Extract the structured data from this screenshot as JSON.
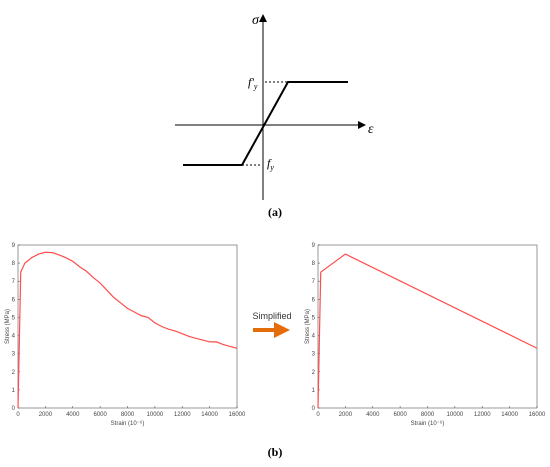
{
  "diagram": {
    "sigma": "σ",
    "epsilon": "ε",
    "upper_label": {
      "main": "f'",
      "sub": "y"
    },
    "lower_label": {
      "main": "f",
      "sub": "y"
    },
    "caption": "(a)"
  },
  "arrow_label": "Simplified",
  "caption_b": "(b)",
  "chart_data": [
    {
      "type": "line",
      "x_label": "Strain (10⁻⁶)",
      "y_label": "Stress (MPa)",
      "color": "#ff4d4d",
      "x": [
        0,
        200,
        500,
        1000,
        1500,
        2000,
        2500,
        3000,
        3500,
        4000,
        4500,
        5000,
        5500,
        6000,
        6500,
        7000,
        7500,
        8000,
        8500,
        9000,
        9500,
        10000,
        10500,
        11000,
        11500,
        12000,
        12500,
        13000,
        13500,
        14000,
        14500,
        15000,
        15500,
        16000
      ],
      "values": [
        0,
        7.5,
        8.0,
        8.3,
        8.5,
        8.6,
        8.58,
        8.45,
        8.3,
        8.1,
        7.8,
        7.55,
        7.2,
        6.9,
        6.5,
        6.1,
        5.8,
        5.5,
        5.3,
        5.1,
        5.0,
        4.7,
        4.5,
        4.35,
        4.25,
        4.1,
        3.95,
        3.85,
        3.75,
        3.65,
        3.65,
        3.5,
        3.4,
        3.3
      ],
      "xlim": [
        0,
        16000
      ],
      "xticks": [
        0,
        2000,
        4000,
        6000,
        8000,
        10000,
        12000,
        14000,
        16000
      ],
      "ylim": [
        0,
        9
      ],
      "yticks": [
        0,
        1,
        2,
        3,
        4,
        5,
        6,
        7,
        8,
        9
      ]
    },
    {
      "type": "line",
      "x_label": "Strain (10⁻⁶)",
      "y_label": "Stress (MPa)",
      "color": "#ff4d4d",
      "x": [
        0,
        200,
        2000,
        16000
      ],
      "values": [
        0,
        7.5,
        8.5,
        3.3
      ],
      "xlim": [
        0,
        16000
      ],
      "xticks": [
        0,
        2000,
        4000,
        6000,
        8000,
        10000,
        12000,
        14000,
        16000
      ],
      "ylim": [
        0,
        9
      ],
      "yticks": [
        0,
        1,
        2,
        3,
        4,
        5,
        6,
        7,
        8,
        9
      ]
    }
  ]
}
